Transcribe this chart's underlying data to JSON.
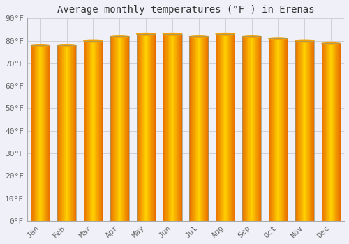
{
  "title": "Average monthly temperatures (°F ) in Erenas",
  "months": [
    "Jan",
    "Feb",
    "Mar",
    "Apr",
    "May",
    "Jun",
    "Jul",
    "Aug",
    "Sep",
    "Oct",
    "Nov",
    "Dec"
  ],
  "values": [
    78,
    78,
    80,
    82,
    83,
    83,
    82,
    83,
    82,
    81,
    80,
    79
  ],
  "bar_color_light": "#FFD000",
  "bar_color_dark": "#E87000",
  "bar_color_mid": "#FFA020",
  "bar_border_color": "#B8860B",
  "background_color": "#F0F0F8",
  "plot_bg_color": "#F0F0F8",
  "grid_color": "#D0D0D8",
  "text_color": "#666666",
  "ylim": [
    0,
    90
  ],
  "yticks": [
    0,
    10,
    20,
    30,
    40,
    50,
    60,
    70,
    80,
    90
  ],
  "ytick_labels": [
    "0°F",
    "10°F",
    "20°F",
    "30°F",
    "40°F",
    "50°F",
    "60°F",
    "70°F",
    "80°F",
    "90°F"
  ],
  "title_fontsize": 10,
  "tick_fontsize": 8,
  "font_family": "monospace",
  "bar_width": 0.72
}
